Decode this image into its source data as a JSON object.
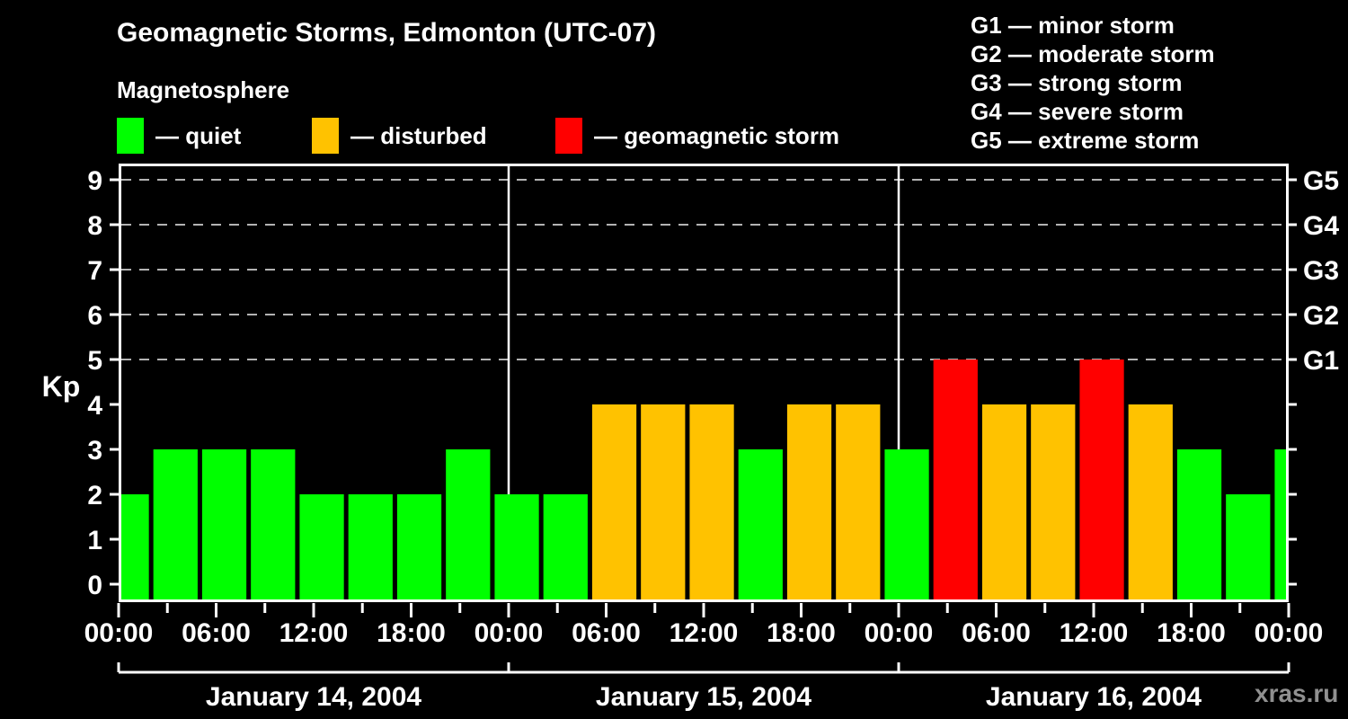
{
  "header": {
    "title": "Geomagnetic Storms, Edmonton (UTC-07)",
    "subtitle": "Magnetosphere"
  },
  "legend": {
    "items": [
      {
        "name": "quiet",
        "label": "— quiet",
        "color": "#00ff00"
      },
      {
        "name": "disturbed",
        "label": "— disturbed",
        "color": "#ffc200"
      },
      {
        "name": "storm",
        "label": "— geomagnetic storm",
        "color": "#ff0000"
      }
    ]
  },
  "storm_scale": {
    "items": [
      "G1 — minor storm",
      "G2 — moderate storm",
      "G3 — strong storm",
      "G4 — severe storm",
      "G5 — extreme storm"
    ]
  },
  "watermark": "xras.ru",
  "chart_data": {
    "type": "bar",
    "title": "Geomagnetic Storms, Edmonton (UTC-07)",
    "ylabel": "Kp",
    "ylim": [
      -0.4,
      9.4
    ],
    "y_ticks": [
      0,
      1,
      2,
      3,
      4,
      5,
      6,
      7,
      8,
      9
    ],
    "gridlines_at": [
      5,
      6,
      7,
      8,
      9
    ],
    "grid": "dashed",
    "right_axis": [
      {
        "kp": 5,
        "label": "G1"
      },
      {
        "kp": 6,
        "label": "G2"
      },
      {
        "kp": 7,
        "label": "G3"
      },
      {
        "kp": 8,
        "label": "G4"
      },
      {
        "kp": 9,
        "label": "G5"
      }
    ],
    "x_hours_range": [
      0,
      72
    ],
    "x_minor_tick_hours": 3,
    "x_label_hours": 6,
    "x_time_labels": [
      "00:00",
      "06:00",
      "12:00",
      "18:00"
    ],
    "days": [
      {
        "label": "January 14, 2004",
        "start_hour": 0
      },
      {
        "label": "January 15, 2004",
        "start_hour": 24
      },
      {
        "label": "January 16, 2004",
        "start_hour": 48
      }
    ],
    "thresholds": {
      "quiet_max": 3,
      "disturbed": 4,
      "storm_min": 5
    },
    "colors": {
      "quiet": "#00ff00",
      "disturbed": "#ffc200",
      "storm": "#ff0000"
    },
    "bars": [
      {
        "start_hour": 0,
        "end_hour": 2,
        "kp": 2
      },
      {
        "start_hour": 2,
        "end_hour": 5,
        "kp": 3
      },
      {
        "start_hour": 5,
        "end_hour": 8,
        "kp": 3
      },
      {
        "start_hour": 8,
        "end_hour": 11,
        "kp": 3
      },
      {
        "start_hour": 11,
        "end_hour": 14,
        "kp": 2
      },
      {
        "start_hour": 14,
        "end_hour": 17,
        "kp": 2
      },
      {
        "start_hour": 17,
        "end_hour": 20,
        "kp": 2
      },
      {
        "start_hour": 20,
        "end_hour": 23,
        "kp": 3
      },
      {
        "start_hour": 23,
        "end_hour": 26,
        "kp": 2
      },
      {
        "start_hour": 26,
        "end_hour": 29,
        "kp": 2
      },
      {
        "start_hour": 29,
        "end_hour": 32,
        "kp": 4
      },
      {
        "start_hour": 32,
        "end_hour": 35,
        "kp": 4
      },
      {
        "start_hour": 35,
        "end_hour": 38,
        "kp": 4
      },
      {
        "start_hour": 38,
        "end_hour": 41,
        "kp": 3
      },
      {
        "start_hour": 41,
        "end_hour": 44,
        "kp": 4
      },
      {
        "start_hour": 44,
        "end_hour": 47,
        "kp": 4
      },
      {
        "start_hour": 47,
        "end_hour": 50,
        "kp": 3
      },
      {
        "start_hour": 50,
        "end_hour": 53,
        "kp": 5
      },
      {
        "start_hour": 53,
        "end_hour": 56,
        "kp": 4
      },
      {
        "start_hour": 56,
        "end_hour": 59,
        "kp": 4
      },
      {
        "start_hour": 59,
        "end_hour": 62,
        "kp": 5
      },
      {
        "start_hour": 62,
        "end_hour": 65,
        "kp": 4
      },
      {
        "start_hour": 65,
        "end_hour": 68,
        "kp": 3
      },
      {
        "start_hour": 68,
        "end_hour": 71,
        "kp": 2
      },
      {
        "start_hour": 71,
        "end_hour": 72,
        "kp": 3
      }
    ]
  }
}
